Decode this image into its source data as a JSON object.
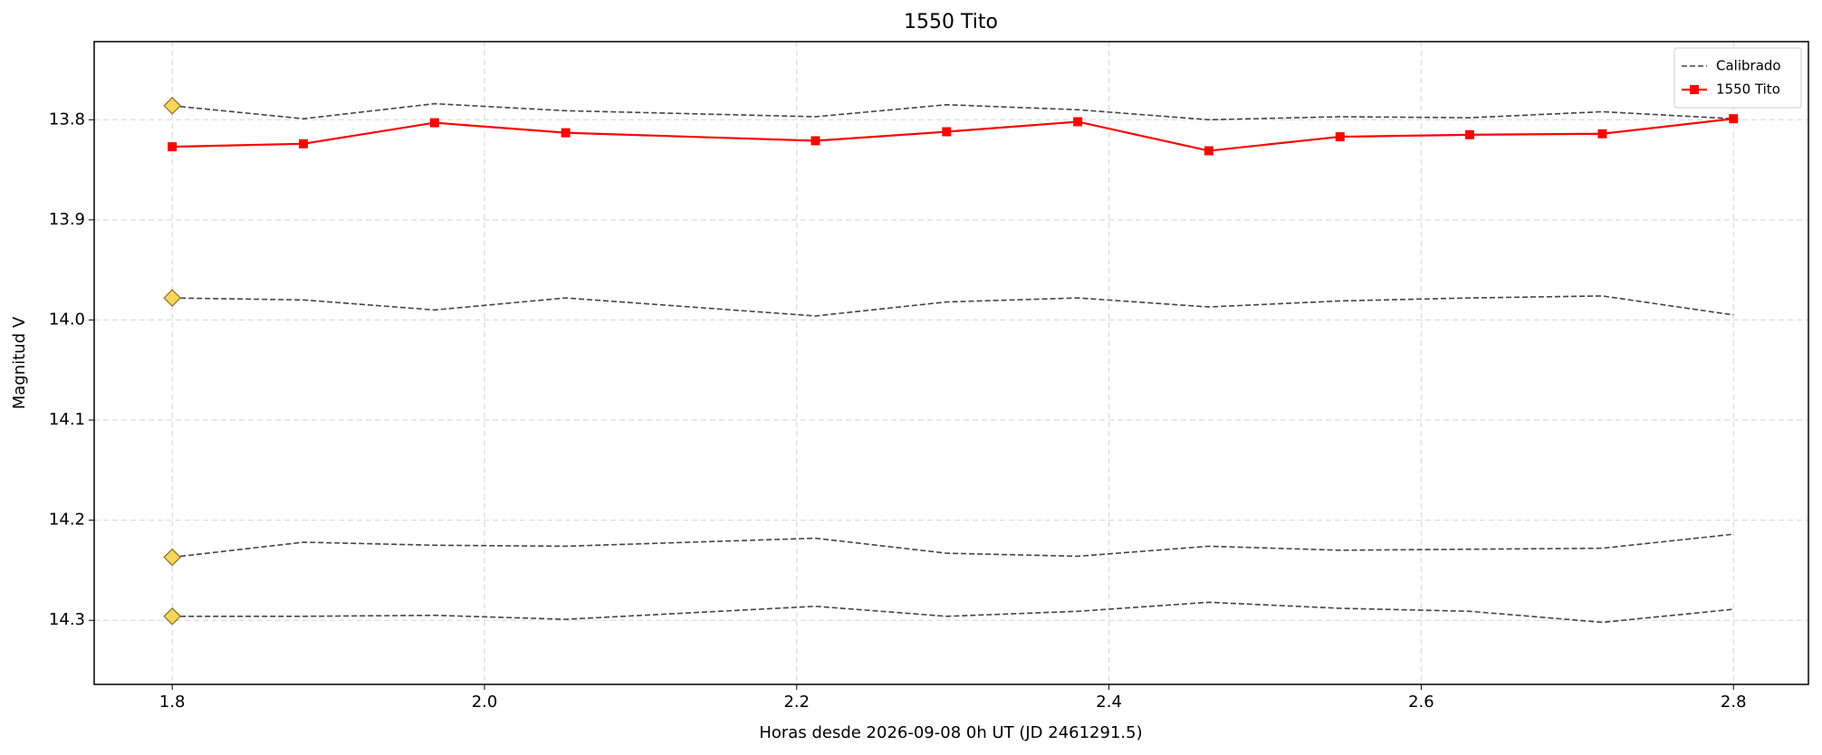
{
  "chart_data": {
    "type": "line",
    "title": "1550 Tito",
    "x_label": "Horas desde 2026-09-08 0h UT (JD 2461291.5)",
    "y_label": "Magnitud V",
    "x": [
      1.8,
      1.884,
      1.968,
      2.052,
      2.212,
      2.296,
      2.38,
      2.464,
      2.548,
      2.631,
      2.716,
      2.8
    ],
    "series": [
      {
        "name": "Calibrado",
        "color": "#444444",
        "dashed": true,
        "start_marker_color": "#f5d55c",
        "values": [
          13.786,
          13.799,
          13.784,
          13.791,
          13.797,
          13.785,
          13.79,
          13.8,
          13.797,
          13.798,
          13.792,
          13.799
        ]
      },
      {
        "color": "#444444",
        "dashed": true,
        "start_marker_color": "#f5d55c",
        "values": [
          13.978,
          13.98,
          13.99,
          13.978,
          13.996,
          13.982,
          13.978,
          13.987,
          13.981,
          13.978,
          13.976,
          13.995
        ]
      },
      {
        "color": "#444444",
        "dashed": true,
        "start_marker_color": "#f5d55c",
        "values": [
          14.237,
          14.222,
          14.225,
          14.226,
          14.218,
          14.233,
          14.236,
          14.226,
          14.23,
          14.229,
          14.228,
          14.214
        ]
      },
      {
        "color": "#444444",
        "dashed": true,
        "start_marker_color": "#f5d55c",
        "values": [
          14.296,
          14.296,
          14.295,
          14.299,
          14.286,
          14.296,
          14.291,
          14.282,
          14.288,
          14.291,
          14.302,
          14.289
        ]
      },
      {
        "name": "1550 Tito",
        "color": "#ff0000",
        "dashed": false,
        "marker": "square",
        "values": [
          13.827,
          13.824,
          13.803,
          13.813,
          13.821,
          13.812,
          13.802,
          13.831,
          13.817,
          13.815,
          13.814,
          13.799
        ]
      }
    ],
    "xlim": [
      1.75,
      2.848
    ],
    "xticks": [
      {
        "value": 1.8,
        "label": "1.8"
      },
      {
        "value": 2.0,
        "label": "2.0"
      },
      {
        "value": 2.2,
        "label": "2.2"
      },
      {
        "value": 2.4,
        "label": "2.4"
      },
      {
        "value": 2.6,
        "label": "2.6"
      },
      {
        "value": 2.8,
        "label": "2.8"
      }
    ],
    "ylim": [
      13.722,
      14.364
    ],
    "y_inverted": true,
    "yticks": [
      13.8,
      13.9,
      {
        "value": 14.0,
        "label": "14.0"
      },
      14.1,
      14.2,
      14.3
    ],
    "grid": true,
    "legend": "upper right"
  }
}
